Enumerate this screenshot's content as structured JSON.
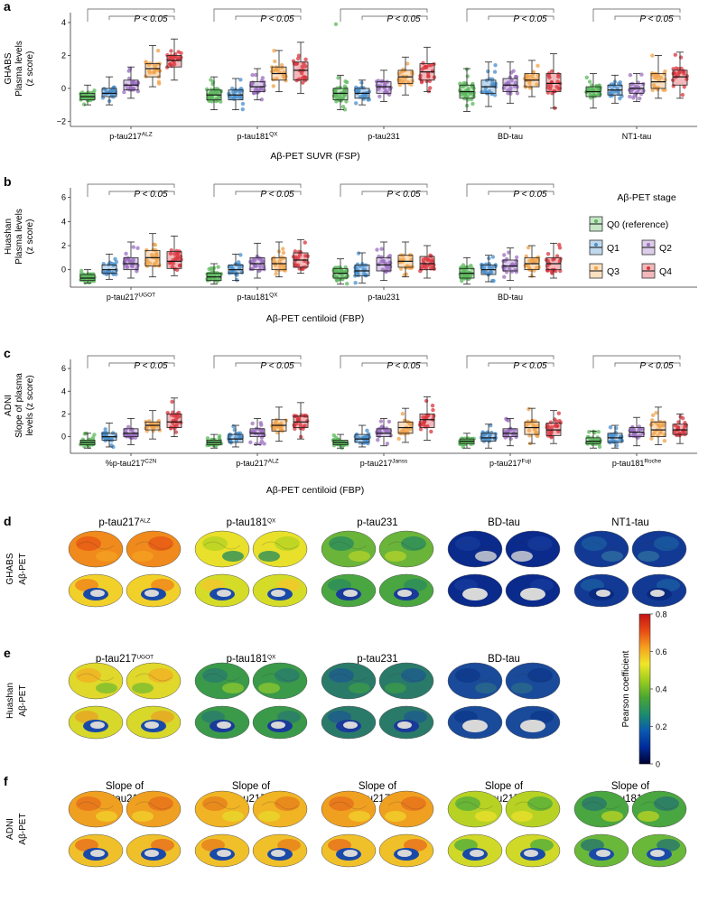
{
  "stage_colors": [
    "#5cb85c",
    "#4a8fcc",
    "#9b6fbf",
    "#f0a24a",
    "#d9353d"
  ],
  "legend": {
    "title": "Aβ-PET stage",
    "items": [
      "Q0 (reference)",
      "Q1",
      "Q2",
      "Q3",
      "Q4"
    ]
  },
  "colorbar": {
    "title": "Pearson coefficient",
    "ticks": [
      "0",
      "0.2",
      "0.4",
      "0.6",
      "0.8"
    ],
    "range": [
      0,
      0.8
    ],
    "colors": [
      "#000030",
      "#002b9a",
      "#0a5ab0",
      "#1e8c6e",
      "#4aa632",
      "#9ccd1e",
      "#f0e62a",
      "#f5a01e",
      "#e84a14",
      "#c41414"
    ]
  },
  "p_text": "P < 0.05",
  "panels_box": [
    {
      "letter": "a",
      "cohort": "GHABS",
      "ylabel1": "Plasma levels",
      "ylabel2": "(z score)",
      "ylim": [
        -2.2,
        4.6
      ],
      "yticks": [
        -2,
        0,
        2,
        4
      ],
      "yticklabels": [
        "−2",
        "0",
        "2",
        "4"
      ],
      "xlabel": "Aβ-PET SUVR (FSP)",
      "groups": [
        {
          "label": "p-tau217",
          "sup": "ALZ",
          "medians": [
            -0.5,
            -0.3,
            0.2,
            1.2,
            1.7
          ],
          "q1": [
            -0.7,
            -0.5,
            -0.1,
            0.7,
            1.3
          ],
          "q3": [
            -0.3,
            0.0,
            0.5,
            1.5,
            2.0
          ],
          "lo": [
            -1.0,
            -1.0,
            -0.6,
            0.1,
            0.5
          ],
          "hi": [
            0.2,
            0.7,
            1.3,
            2.6,
            3.0
          ]
        },
        {
          "label": "p-tau181",
          "sup": "QX",
          "medians": [
            -0.4,
            -0.4,
            0.1,
            0.9,
            1.1
          ],
          "q1": [
            -0.7,
            -0.7,
            -0.2,
            0.5,
            0.5
          ],
          "q3": [
            -0.1,
            -0.1,
            0.4,
            1.3,
            1.6
          ],
          "lo": [
            -1.3,
            -1.3,
            -0.7,
            -0.2,
            -0.3
          ],
          "hi": [
            0.7,
            0.6,
            1.2,
            2.3,
            2.8
          ]
        },
        {
          "label": "p-tau231",
          "sup": "",
          "medians": [
            -0.3,
            -0.3,
            0.1,
            0.7,
            1.0
          ],
          "q1": [
            -0.7,
            -0.6,
            -0.3,
            0.3,
            0.5
          ],
          "q3": [
            0.0,
            0.0,
            0.4,
            1.1,
            1.5
          ],
          "lo": [
            -1.3,
            -1.0,
            -0.8,
            -0.4,
            -0.2
          ],
          "hi": [
            0.8,
            0.5,
            1.1,
            1.9,
            2.5
          ]
        },
        {
          "label": "BD-tau",
          "sup": "",
          "medians": [
            -0.2,
            0.1,
            0.2,
            0.5,
            0.3
          ],
          "q1": [
            -0.6,
            -0.3,
            -0.2,
            0.1,
            -0.2
          ],
          "q3": [
            0.2,
            0.5,
            0.6,
            0.9,
            0.9
          ],
          "lo": [
            -1.4,
            -1.1,
            -0.9,
            -0.5,
            -1.2
          ],
          "hi": [
            1.2,
            1.6,
            1.6,
            1.7,
            2.1
          ]
        },
        {
          "label": "NT1-tau",
          "sup": "",
          "medians": [
            -0.2,
            -0.1,
            0.0,
            0.4,
            0.7
          ],
          "q1": [
            -0.5,
            -0.4,
            -0.3,
            0.0,
            0.2
          ],
          "q3": [
            0.1,
            0.2,
            0.3,
            0.9,
            1.1
          ],
          "lo": [
            -1.2,
            -0.9,
            -0.8,
            -0.6,
            -0.6
          ],
          "hi": [
            0.9,
            0.8,
            0.9,
            2.0,
            2.2
          ]
        }
      ]
    },
    {
      "letter": "b",
      "cohort": "Huashan",
      "ylabel1": "Plasma levels",
      "ylabel2": "(z score)",
      "ylim": [
        -1.3,
        6.8
      ],
      "yticks": [
        0,
        2,
        4,
        6
      ],
      "yticklabels": [
        "0",
        "2",
        "4",
        "6"
      ],
      "xlabel": "Aβ-PET centiloid (FBP)",
      "groups": [
        {
          "label": "p-tau217",
          "sup": "UGOT",
          "medians": [
            -0.7,
            0.0,
            0.5,
            1.0,
            0.7
          ],
          "q1": [
            -0.9,
            -0.3,
            0.0,
            0.3,
            0.1
          ],
          "q3": [
            -0.4,
            0.4,
            1.0,
            1.6,
            1.5
          ],
          "lo": [
            -1.1,
            -0.8,
            -0.7,
            -0.6,
            -0.5
          ],
          "hi": [
            0.0,
            1.3,
            2.3,
            3.0,
            2.8
          ]
        },
        {
          "label": "p-tau181",
          "sup": "QX",
          "medians": [
            -0.6,
            0.0,
            0.5,
            0.5,
            0.8
          ],
          "q1": [
            -0.9,
            -0.3,
            0.0,
            0.0,
            0.2
          ],
          "q3": [
            -0.3,
            0.4,
            1.0,
            1.0,
            1.4
          ],
          "lo": [
            -1.2,
            -0.9,
            -0.7,
            -0.6,
            -0.3
          ],
          "hi": [
            0.5,
            1.3,
            2.2,
            2.3,
            2.5
          ]
        },
        {
          "label": "p-tau231",
          "sup": "",
          "medians": [
            -0.3,
            -0.1,
            0.4,
            0.7,
            0.5
          ],
          "q1": [
            -0.7,
            -0.5,
            -0.1,
            0.2,
            0.0
          ],
          "q3": [
            0.1,
            0.4,
            1.0,
            1.2,
            1.1
          ],
          "lo": [
            -1.2,
            -1.1,
            -0.9,
            -0.6,
            -0.7
          ],
          "hi": [
            0.9,
            1.4,
            2.3,
            2.3,
            2.0
          ]
        },
        {
          "label": "BD-tau",
          "sup": "",
          "medians": [
            -0.3,
            0.0,
            0.3,
            0.5,
            0.5
          ],
          "q1": [
            -0.7,
            -0.4,
            -0.1,
            0.0,
            0.0
          ],
          "q3": [
            0.1,
            0.4,
            0.8,
            1.0,
            1.0
          ],
          "lo": [
            -1.2,
            -1.0,
            -0.9,
            -0.6,
            -0.7
          ],
          "hi": [
            1.0,
            1.2,
            1.8,
            2.0,
            2.2
          ]
        }
      ]
    },
    {
      "letter": "c",
      "cohort": "ADNI",
      "ylabel1": "Slope of plasma",
      "ylabel2": "levels (z score)",
      "ylim": [
        -1.3,
        6.8
      ],
      "yticks": [
        0,
        2,
        4,
        6
      ],
      "yticklabels": [
        "0",
        "2",
        "4",
        "6"
      ],
      "xlabel": "Aβ-PET centiloid (FBP)",
      "groups": [
        {
          "label": "%p-tau217",
          "sup": "C2N",
          "medians": [
            -0.5,
            0.0,
            0.3,
            1.0,
            1.3
          ],
          "q1": [
            -0.7,
            -0.3,
            0.0,
            0.6,
            0.8
          ],
          "q3": [
            -0.3,
            0.3,
            0.7,
            1.3,
            2.0
          ],
          "lo": [
            -1.0,
            -0.9,
            -0.7,
            -0.2,
            0.0
          ],
          "hi": [
            0.3,
            1.2,
            1.6,
            2.3,
            3.4
          ]
        },
        {
          "label": "p-tau217",
          "sup": "ALZ",
          "medians": [
            -0.5,
            -0.2,
            0.3,
            1.0,
            1.3
          ],
          "q1": [
            -0.7,
            -0.5,
            0.0,
            0.5,
            0.8
          ],
          "q3": [
            -0.3,
            0.2,
            0.7,
            1.5,
            1.8
          ],
          "lo": [
            -1.0,
            -0.9,
            -0.7,
            -0.4,
            -0.2
          ],
          "hi": [
            0.2,
            1.0,
            1.6,
            2.6,
            3.0
          ]
        },
        {
          "label": "p-tau217",
          "sup": "Janss",
          "medians": [
            -0.5,
            -0.2,
            0.3,
            0.8,
            1.5
          ],
          "q1": [
            -0.7,
            -0.5,
            0.0,
            0.3,
            0.8
          ],
          "q3": [
            -0.3,
            0.2,
            0.7,
            1.3,
            2.0
          ],
          "lo": [
            -1.0,
            -0.9,
            -0.8,
            -0.5,
            -0.3
          ],
          "hi": [
            0.2,
            1.0,
            1.6,
            2.5,
            3.5
          ]
        },
        {
          "label": "p-tau217",
          "sup": "Fuji",
          "medians": [
            -0.4,
            -0.1,
            0.3,
            0.8,
            0.6
          ],
          "q1": [
            -0.6,
            -0.4,
            0.0,
            0.2,
            0.1
          ],
          "q3": [
            -0.2,
            0.3,
            0.7,
            1.3,
            1.2
          ],
          "lo": [
            -1.0,
            -1.0,
            -0.8,
            -0.6,
            -0.6
          ],
          "hi": [
            0.3,
            1.1,
            1.6,
            2.5,
            2.3
          ]
        },
        {
          "label": "p-tau181",
          "sup": "Roche",
          "medians": [
            -0.4,
            -0.1,
            0.4,
            0.6,
            0.6
          ],
          "q1": [
            -0.6,
            -0.5,
            0.0,
            0.0,
            0.2
          ],
          "q3": [
            -0.1,
            0.3,
            0.8,
            1.3,
            1.1
          ],
          "lo": [
            -1.0,
            -1.0,
            -0.8,
            -0.7,
            -0.6
          ],
          "hi": [
            0.5,
            1.0,
            1.7,
            2.6,
            2.0
          ]
        }
      ]
    }
  ],
  "panels_brain": [
    {
      "letter": "d",
      "cohort": "GHABS",
      "modality": "Aβ-PET",
      "maps": [
        {
          "t1": "",
          "t2": "p-tau217",
          "sup": "ALZ",
          "lat": [
            "#f08a1c",
            "#e85a14",
            "#f5a020"
          ],
          "med": [
            "#f2d02a",
            "#f08a1c",
            "#1a4aa8"
          ]
        },
        {
          "t1": "",
          "t2": "p-tau181",
          "sup": "QX",
          "lat": [
            "#e8e02a",
            "#b8d424",
            "#2e8e5a"
          ],
          "med": [
            "#d4dc28",
            "#f0c82a",
            "#1a4aa8"
          ]
        },
        {
          "t1": "",
          "t2": "p-tau231",
          "sup": "",
          "lat": [
            "#6ab43a",
            "#2e8e5a",
            "#b0d22a"
          ],
          "med": [
            "#4aa640",
            "#2e8e5a",
            "#1a3a9a"
          ]
        },
        {
          "t1": "",
          "t2": "BD-tau",
          "sup": "",
          "lat": [
            "#0a2a8c",
            "#143a9a",
            "#d8d8d8"
          ],
          "med": [
            "#0a2a8c",
            "#143a9a",
            "#d8d8d8"
          ]
        },
        {
          "t1": "",
          "t2": "NT1-tau",
          "sup": "",
          "lat": [
            "#123a94",
            "#1a5aa0",
            "#2e6ea0"
          ],
          "med": [
            "#123a94",
            "#1a5aa0",
            "#0a2a80"
          ]
        }
      ]
    },
    {
      "letter": "e",
      "cohort": "Huashan",
      "modality": "Aβ-PET",
      "maps": [
        {
          "t1": "",
          "t2": "p-tau217",
          "sup": "UGOT",
          "lat": [
            "#e0d82a",
            "#f0b424",
            "#7abe30"
          ],
          "med": [
            "#d8d82a",
            "#e8a824",
            "#1a4aa8"
          ]
        },
        {
          "t1": "",
          "t2": "p-tau181",
          "sup": "QX",
          "lat": [
            "#3a9a4a",
            "#2a7e6a",
            "#8ac430"
          ],
          "med": [
            "#3a9a4a",
            "#2a7e6a",
            "#1a3a9a"
          ]
        },
        {
          "t1": "",
          "t2": "p-tau231",
          "sup": "",
          "lat": [
            "#2a7a6a",
            "#1e5e8a",
            "#3a9a4a"
          ],
          "med": [
            "#2a7a6a",
            "#1e5e8a",
            "#1a3a9a"
          ]
        },
        {
          "t1": "",
          "t2": "BD-tau",
          "sup": "",
          "lat": [
            "#1a4a9a",
            "#0e3a8c",
            "#2a6a8a"
          ],
          "med": [
            "#1a4a9a",
            "#0e3a8c",
            "#d8d8d8"
          ]
        }
      ]
    },
    {
      "letter": "f",
      "cohort": "ADNI",
      "modality": "Aβ-PET",
      "maps": [
        {
          "t1": "Slope of",
          "t2": "%p-tau217",
          "sup": "C2N",
          "lat": [
            "#f0a020",
            "#e8731c",
            "#f0d02a"
          ],
          "med": [
            "#f0c02a",
            "#e8731c",
            "#1a4aa8"
          ]
        },
        {
          "t1": "Slope of",
          "t2": "p-tau217",
          "sup": "ALZ",
          "lat": [
            "#f0b424",
            "#e8831c",
            "#e8d82a"
          ],
          "med": [
            "#f0c02a",
            "#e8831c",
            "#1a4aa8"
          ]
        },
        {
          "t1": "Slope of",
          "t2": "p-tau217",
          "sup": "Janss",
          "lat": [
            "#f0a020",
            "#e8731c",
            "#f0d02a"
          ],
          "med": [
            "#f0c02a",
            "#e8731c",
            "#1a4aa8"
          ]
        },
        {
          "t1": "Slope of",
          "t2": "p-tau217",
          "sup": "Fuji",
          "lat": [
            "#b8d224",
            "#5ab03a",
            "#e8e02a"
          ],
          "med": [
            "#d0d828",
            "#5ab03a",
            "#1a4aa8"
          ]
        },
        {
          "t1": "Slope of",
          "t2": "p-tau181",
          "sup": "Roche",
          "lat": [
            "#4aa640",
            "#2a7a6a",
            "#b8d224"
          ],
          "med": [
            "#6ab83a",
            "#2a7a6a",
            "#1a4aa8"
          ]
        }
      ]
    }
  ]
}
